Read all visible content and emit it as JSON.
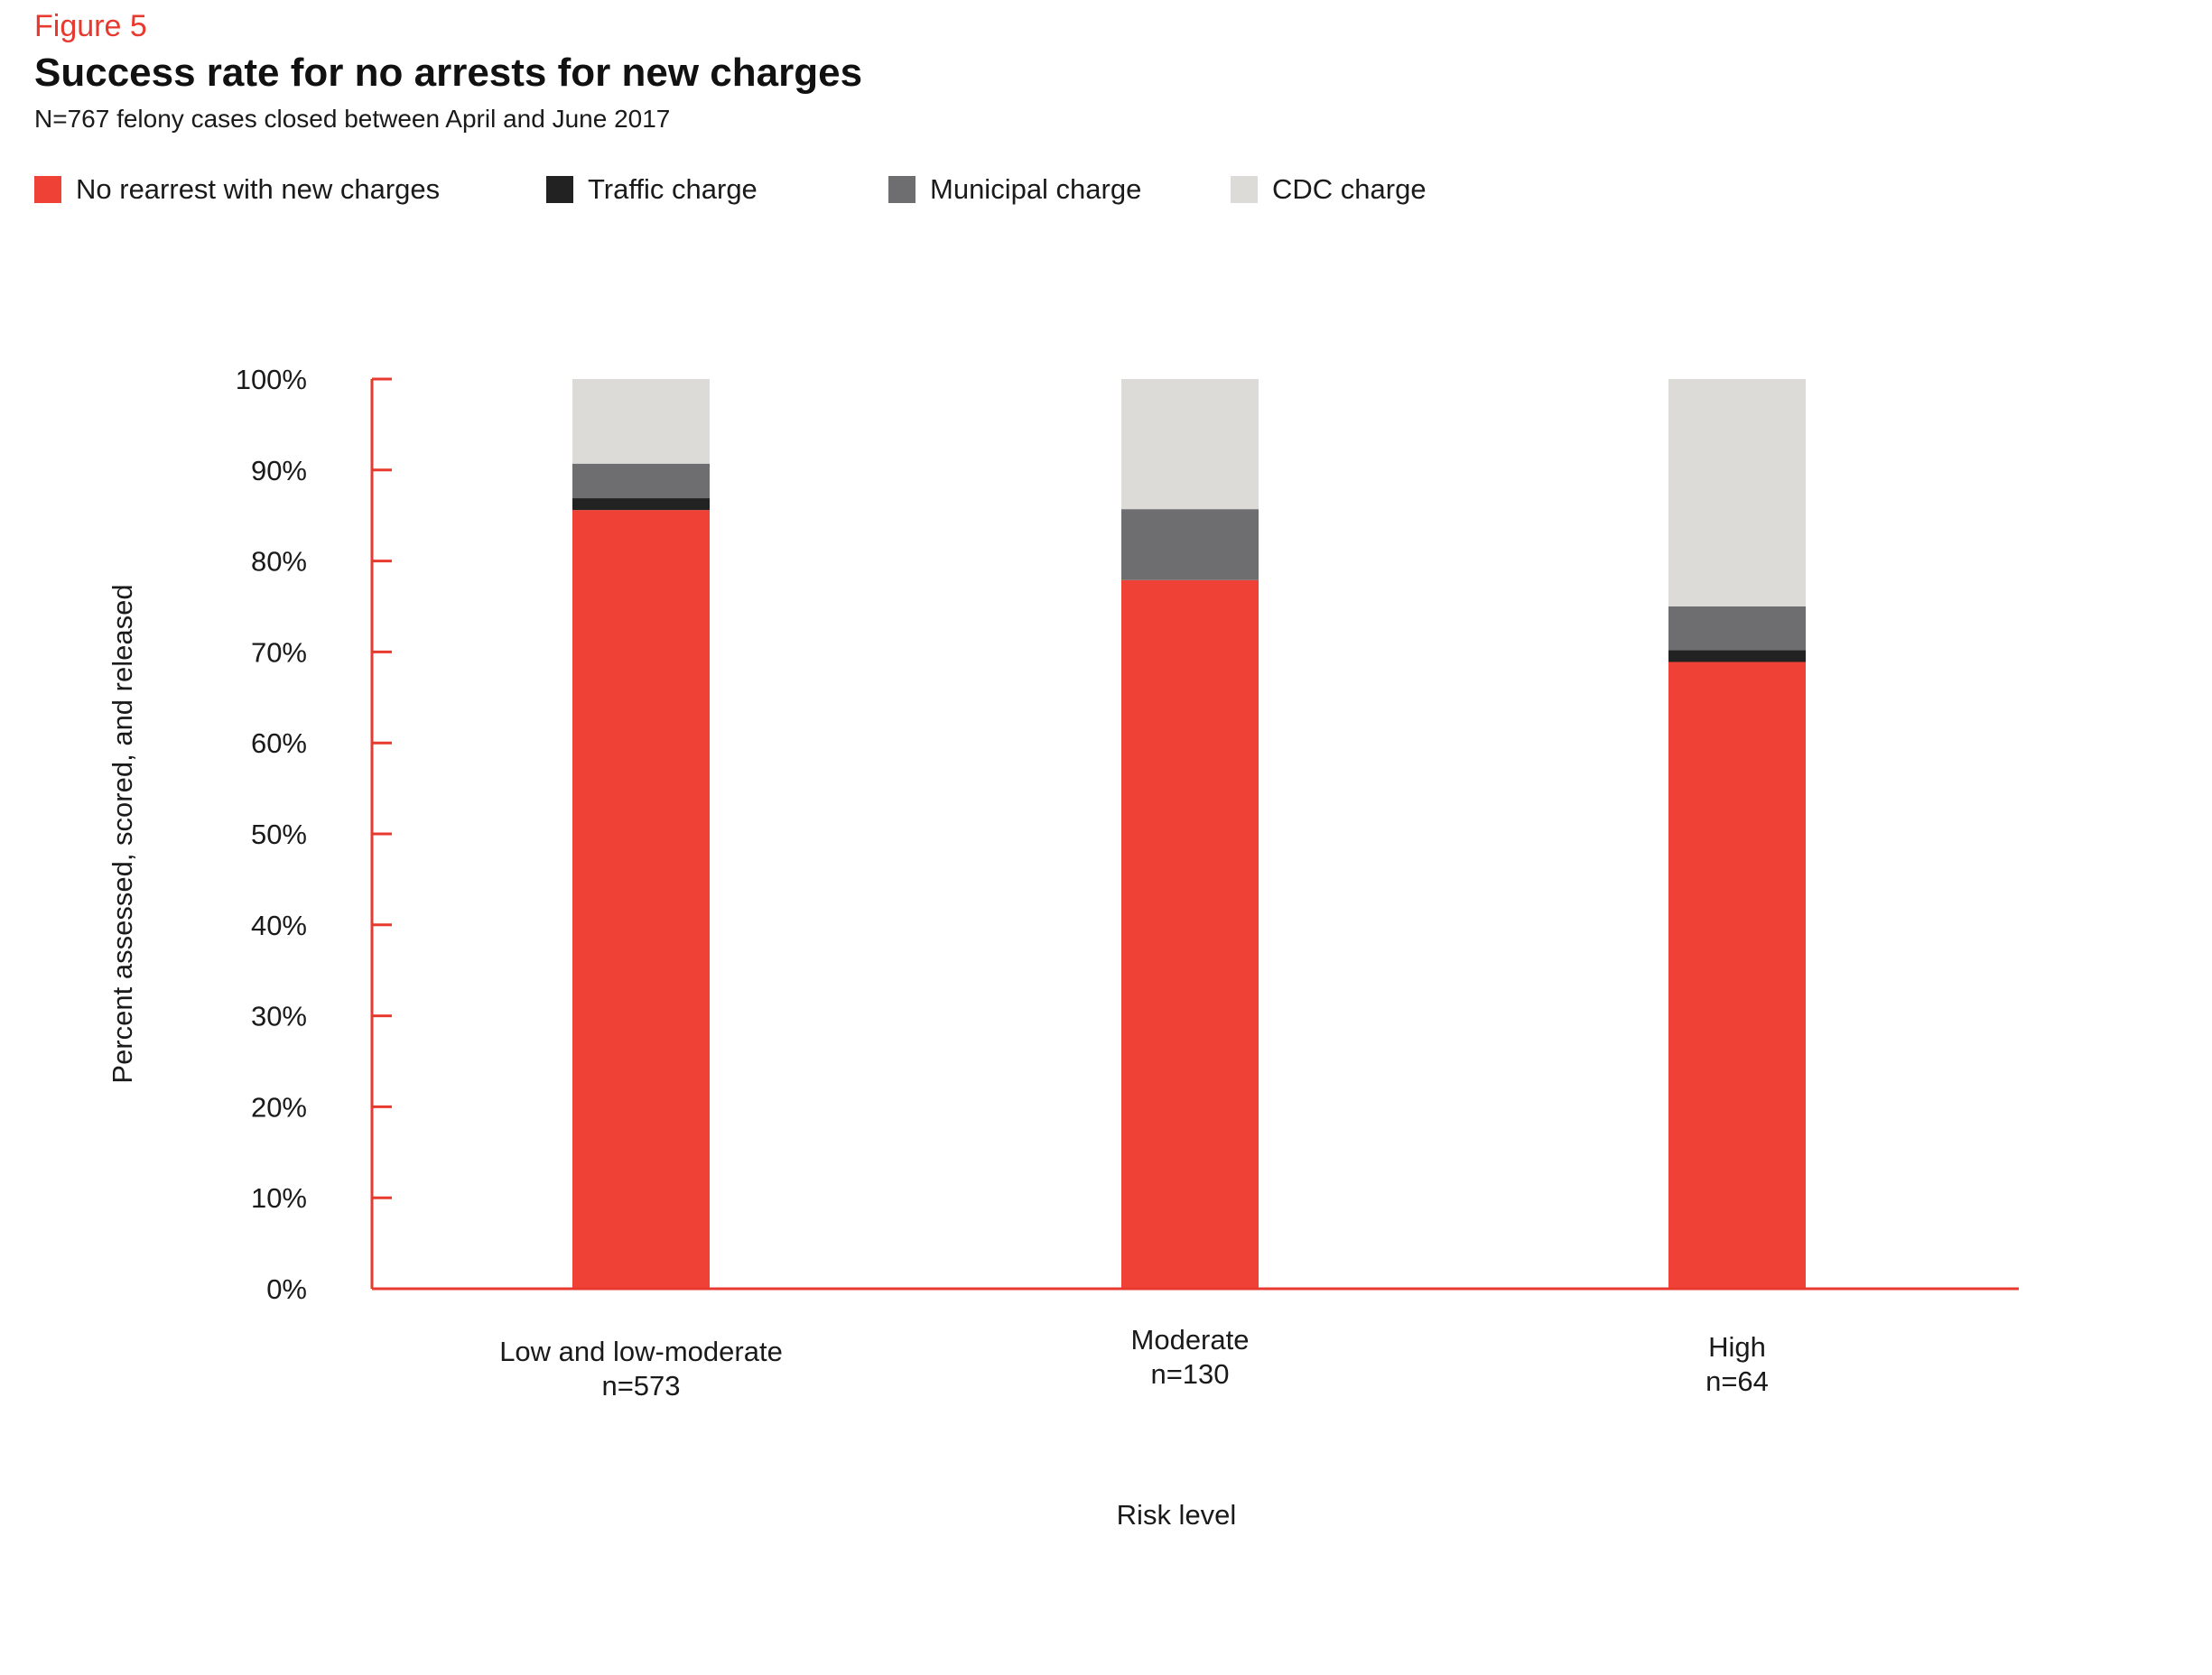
{
  "figure_label": "Figure 5",
  "title": "Success rate for no arrests for new charges",
  "subtitle": "N=767 felony cases closed between April and June 2017",
  "colors": {
    "accent": "#e8392f",
    "bar_red": "#ef4136",
    "traffic": "#222222",
    "municipal": "#6e6e70",
    "cdc": "#dcdbd8"
  },
  "legend": [
    {
      "label": "No rearrest with new charges",
      "color": "#ef4136"
    },
    {
      "label": "Traffic charge",
      "color": "#222222"
    },
    {
      "label": "Municipal charge",
      "color": "#6e6e70"
    },
    {
      "label": "CDC charge",
      "color": "#dcdbd8"
    }
  ],
  "chart_data": {
    "type": "bar",
    "stacked": true,
    "categories": [
      {
        "label": "Low and low-moderate",
        "n": "n=573"
      },
      {
        "label": "Moderate",
        "n": "n=130"
      },
      {
        "label": "High",
        "n": "n=64"
      }
    ],
    "series": [
      {
        "name": "No rearrest with new charges",
        "color": "#ef4136",
        "values": [
          85.6,
          77.9,
          68.9
        ]
      },
      {
        "name": "Traffic charge",
        "color": "#222222",
        "values": [
          1.3,
          0,
          1.3
        ]
      },
      {
        "name": "Municipal charge",
        "color": "#6e6e70",
        "values": [
          3.8,
          7.8,
          4.8
        ]
      },
      {
        "name": "CDC charge",
        "color": "#dcdbd8",
        "values": [
          9.3,
          14.3,
          25.0
        ]
      }
    ],
    "xlabel": "Risk level",
    "ylabel": "Percent assessed, scored, and released",
    "ylim": [
      0,
      100
    ],
    "yticks": [
      0,
      10,
      20,
      30,
      40,
      50,
      60,
      70,
      80,
      90,
      100
    ],
    "ytick_labels": [
      "0%",
      "10%",
      "20%",
      "30%",
      "40%",
      "50%",
      "60%",
      "70%",
      "80%",
      "90%",
      "100%"
    ],
    "grid": false,
    "legend_position": "top-left"
  }
}
